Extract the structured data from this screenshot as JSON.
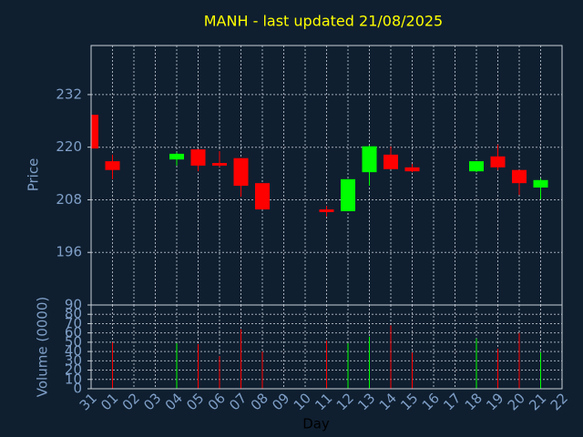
{
  "chart_data": {
    "type": "candlestick",
    "title": "MANH - last updated 21/08/2025",
    "ylabel": "Price",
    "volume_label": "Volume (0000)",
    "xlabel": "Day",
    "categories": [
      "31",
      "01",
      "02",
      "03",
      "04",
      "05",
      "06",
      "07",
      "08",
      "09",
      "10",
      "11",
      "12",
      "13",
      "14",
      "15",
      "16",
      "17",
      "18",
      "19",
      "20",
      "21",
      "22"
    ],
    "open": [
      227.4,
      216.8,
      null,
      null,
      217.2,
      219.5,
      216.4,
      217.5,
      211.8,
      null,
      null,
      205.8,
      205.4,
      214.3,
      218.3,
      215.4,
      null,
      null,
      214.5,
      217.9,
      214.8,
      210.8,
      null
    ],
    "high": [
      227.4,
      218.3,
      null,
      null,
      218.8,
      219.6,
      219.1,
      217.5,
      211.8,
      null,
      null,
      206.6,
      212.7,
      220.4,
      220.2,
      216.2,
      null,
      null,
      216.8,
      220.6,
      214.8,
      212.9,
      null
    ],
    "low": [
      219.7,
      212.7,
      null,
      null,
      215.8,
      214.5,
      215.5,
      208.7,
      205.8,
      null,
      null,
      204.2,
      205.4,
      211.2,
      215.0,
      214.3,
      null,
      null,
      214.3,
      214.8,
      209.1,
      208.1,
      null
    ],
    "close": [
      219.7,
      214.8,
      null,
      null,
      218.5,
      215.8,
      215.8,
      211.2,
      205.8,
      null,
      null,
      205.2,
      212.7,
      220.2,
      215.0,
      214.5,
      null,
      null,
      216.8,
      215.4,
      211.8,
      212.5,
      null
    ],
    "volume": [
      null,
      50,
      null,
      null,
      49,
      48,
      35,
      64,
      40,
      null,
      null,
      52,
      49,
      56,
      68,
      39,
      null,
      null,
      54,
      43,
      60,
      39,
      null
    ],
    "up_color": "#00ff00",
    "down_color": "#ff0000",
    "ylim": [
      184,
      243.2
    ],
    "yticks": [
      196,
      208,
      220,
      232
    ],
    "volume_ylim": [
      0,
      90
    ],
    "volume_yticks": [
      0,
      10,
      20,
      30,
      40,
      50,
      60,
      70,
      80,
      90
    ],
    "grid": true
  }
}
